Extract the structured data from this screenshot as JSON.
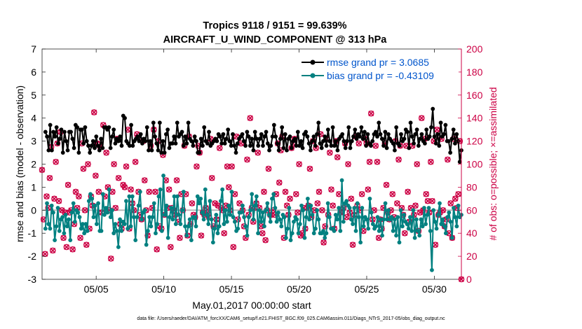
{
  "chart_data": {
    "type": "line",
    "title_line1": "Tropics 9118 / 9151 = 99.639%",
    "title_line2": "AIRCRAFT_U_WIND_COMPONENT @ 313 hPa",
    "xlabel": "May.01,2017 00:00:00 start",
    "ylabel_left": "rmse and bias (model - observation)",
    "ylabel_right": "# of obs: o=possible; ×=assimilated",
    "footer": "data file: /Users/raeder/DAI/ATM_forcXX/CAM6_setup/f.e21.FHIST_BGC.f09_025.CAM6assim.011/Diags_NTrS_2017-05/obs_diag_output.nc",
    "xlim": [
      1,
      32
    ],
    "ylim_left": [
      -3,
      7
    ],
    "ylim_right": [
      0,
      200
    ],
    "x_ticks": [
      5,
      10,
      15,
      20,
      25,
      30
    ],
    "x_tick_labels": [
      "05/05",
      "05/10",
      "05/15",
      "05/20",
      "05/25",
      "05/30"
    ],
    "y_ticks_left": [
      "-3",
      "-2",
      "-1",
      "0",
      "1",
      "2",
      "3",
      "4",
      "5",
      "6",
      "7"
    ],
    "y_ticks_right": [
      "0",
      "20",
      "40",
      "60",
      "80",
      "100",
      "120",
      "140",
      "160",
      "180",
      "200"
    ],
    "legend": [
      {
        "name": "rmse grand pr = 3.0685",
        "color": "#000000"
      },
      {
        "name": "bias grand pr = -0.43109",
        "color": "#008080"
      }
    ],
    "legend_text_color": "#0055cc",
    "right_axis_color": "#cc0044",
    "series": [
      {
        "name": "rmse",
        "color": "#000000",
        "values": [
          3.4,
          3.2,
          2.6,
          3.7,
          2.6,
          3.4,
          3.2,
          3.6,
          2.9,
          3.1,
          3.5,
          2.5,
          3.4,
          3.0,
          2.6,
          3.4,
          3.4,
          3.1,
          2.7,
          3.7,
          3.6,
          2.5,
          3.5,
          3.5,
          2.9,
          3.6,
          3.0,
          2.8,
          2.5,
          2.8,
          3.0,
          2.7,
          3.2,
          2.8,
          2.6,
          3.1,
          2.7,
          3.6,
          3.6,
          3.5,
          3.6,
          2.7,
          3.2,
          3.5,
          2.9,
          3.1,
          3.0,
          3.2,
          2.8,
          4.1,
          4.0,
          3.0,
          2.9,
          2.8,
          3.7,
          2.8,
          3.0,
          3.1,
          3.2,
          3.0,
          3.3,
          2.9,
          3.1,
          3.0,
          3.6,
          2.6,
          3.0,
          2.6,
          3.8,
          3.2,
          2.9,
          2.6,
          3.8,
          2.5,
          3.0,
          2.5,
          3.3,
          3.5,
          2.7,
          2.9,
          2.9,
          3.2,
          2.9,
          3.8,
          3.2,
          3.3,
          3.4,
          2.8,
          3.2,
          2.9,
          3.8,
          3.1,
          3.0,
          2.8,
          3.2,
          3.0,
          2.5,
          2.5,
          3.1,
          2.8,
          3.6,
          3.0,
          2.9,
          3.4,
          2.8,
          2.9,
          3.0,
          3.1,
          3.0,
          3.3,
          3.2,
          2.9,
          3.3,
          2.9,
          3.1,
          3.5,
          3.0,
          2.8,
          3.3,
          2.8,
          2.5,
          2.9,
          3.1,
          3.2,
          3.3,
          3.0,
          2.8,
          3.4,
          3.2,
          2.8,
          3.1,
          2.6,
          3.4,
          3.1,
          2.8,
          3.1,
          3.3,
          2.8,
          3.2,
          3.4,
          2.9,
          2.6,
          2.8,
          3.2,
          3.7,
          3.2,
          2.9,
          2.6,
          3.1,
          3.6,
          2.7,
          3.3,
          2.6,
          3.1,
          3.2,
          2.7,
          3.0,
          3.1,
          2.8,
          3.4,
          2.8,
          3.0,
          2.7,
          3.3,
          3.4,
          3.2,
          2.9,
          2.6,
          3.0,
          3.2,
          2.8,
          3.3,
          3.8,
          2.9,
          2.7,
          3.0,
          3.2,
          2.8,
          3.5,
          3.0,
          2.8,
          3.6,
          2.8,
          3.0,
          2.6,
          3.1,
          3.2,
          3.3,
          3.0,
          2.7,
          3.0,
          3.6,
          2.7,
          3.0,
          3.2,
          3.5,
          3.1,
          3.3,
          3.2,
          3.6,
          3.1,
          3.4,
          2.8,
          3.3,
          2.9,
          2.8,
          3.0,
          3.3,
          3.4,
          3.2,
          3.8,
          3.3,
          3.1,
          2.8,
          3.4,
          2.7,
          3.3,
          3.1,
          3.0,
          2.9,
          2.6,
          3.6,
          2.9,
          2.8,
          3.3,
          3.0,
          3.1,
          3.5,
          3.4,
          2.7,
          3.8,
          3.2,
          2.9,
          3.3,
          3.5,
          2.8,
          3.1,
          3.3,
          3.0,
          2.9,
          3.5,
          3.1,
          3.2,
          3.6,
          4.4,
          3.2,
          2.9,
          3.3,
          2.8,
          3.8,
          3.2,
          3.3,
          3.7,
          3.0,
          3.0,
          2.5,
          3.1,
          3.5,
          2.9,
          3.3,
          3.0,
          2.1,
          2.6
        ]
      },
      {
        "name": "bias",
        "color": "#008080",
        "values": [
          -0.8,
          0.3,
          -0.6,
          -0.8,
          0.2,
          -0.1,
          -1.3,
          -0.7,
          0.1,
          -0.9,
          -0.4,
          -0.3,
          -1.0,
          -0.2,
          -0.7,
          -0.4,
          -1.3,
          -0.1,
          0.3,
          -0.5,
          0.0,
          -0.1,
          -0.3,
          -0.8,
          -0.6,
          -1.0,
          -0.6,
          -0.9,
          0.4,
          0.7,
          0.5,
          -0.3,
          0.2,
          -0.6,
          0.3,
          -0.9,
          -0.9,
          0.7,
          -0.2,
          0.1,
          -0.1,
          0.9,
          -0.3,
          0.0,
          -1.0,
          -0.6,
          -0.9,
          -1.6,
          -0.4,
          -0.9,
          -0.5,
          -0.6,
          0.4,
          -0.8,
          0.6,
          -0.7,
          0.6,
          -0.3,
          -1.3,
          -0.3,
          0.2,
          0.8,
          -0.4,
          -0.1,
          0.0,
          -1.5,
          -0.9,
          -0.3,
          -0.7,
          -0.3,
          0.3,
          -1.0,
          -0.6,
          0.6,
          0.9,
          -0.9,
          1.5,
          -0.2,
          0.2,
          -1.2,
          -0.3,
          0.1,
          -0.4,
          0.6,
          -0.6,
          0.6,
          -0.2,
          -0.6,
          0.0,
          0.8,
          -0.7,
          -1.1,
          -0.7,
          -0.4,
          -1.3,
          -0.3,
          -0.3,
          -0.7,
          0.6,
          0.3,
          0.5,
          -0.1,
          -0.4,
          0.9,
          -0.2,
          -0.6,
          0.4,
          -0.4,
          -1.4,
          -0.8,
          -0.2,
          -1.0,
          -0.7,
          0.4,
          0.9,
          -0.6,
          0.0,
          -0.5,
          0.2,
          -0.2,
          0.8,
          -0.3,
          -0.5,
          -0.9,
          -0.8,
          -0.1,
          -0.1,
          0.2,
          -0.3,
          -0.7,
          -1.1,
          -0.3,
          0.0,
          0.7,
          -0.4,
          0.2,
          0.6,
          -1.0,
          0.0,
          -0.5,
          -0.1,
          -0.7,
          0.0,
          0.3,
          -0.2,
          -0.5,
          0.5,
          0.7,
          0.1,
          -0.5,
          -0.1,
          -0.4,
          -0.7,
          -0.2,
          -0.3,
          -1.2,
          -0.8,
          0.1,
          -1.3,
          -1.0,
          -0.5,
          -0.3,
          -0.4,
          -1.0,
          -0.6,
          0.2,
          0.0,
          -1.2,
          -0.3,
          0.5,
          -0.4,
          0.2,
          -0.2,
          -1.0,
          -0.8,
          0.0,
          -0.4,
          -1.0,
          -1.0,
          -0.9,
          -1.2,
          -1.0,
          0.3,
          -0.3,
          -0.8,
          -0.8,
          -0.9,
          -0.2,
          -0.4,
          0.1,
          -0.9,
          1.3,
          -0.5,
          0.3,
          0.4,
          0.2,
          0.1,
          -0.4,
          -0.6,
          0.1,
          -0.9,
          0.3,
          -0.3,
          -1.4,
          0.1,
          -0.7,
          -0.3,
          -0.4,
          -0.8,
          0.5,
          -0.1,
          -0.6,
          -0.8,
          -0.7,
          -0.3,
          -0.9,
          -0.4,
          -1.1,
          -0.4,
          0.3,
          -0.4,
          0.0,
          -0.4,
          -0.3,
          -0.9,
          -0.4,
          -1.1,
          -0.3,
          -1.4,
          0.0,
          -0.7,
          -0.2,
          -0.5,
          -0.6,
          -0.8,
          -0.3,
          -0.9,
          0.0,
          -1.2,
          -0.4,
          -0.9,
          -1.1,
          -0.4,
          -0.7,
          0.1,
          -0.6,
          -0.2,
          0.1,
          -0.9,
          -2.6,
          0.0,
          -0.5,
          -0.8,
          -0.2,
          0.3,
          -0.6,
          -0.4,
          -0.7,
          -1.0,
          -0.3,
          -0.1,
          -0.5,
          -1.2,
          0.1,
          -0.3,
          -0.7,
          0.2,
          -0.3,
          -0.2
        ]
      },
      {
        "name": "# obs possible (o)",
        "color": "#cc0044",
        "values": [
          95,
          52,
          22,
          72,
          62,
          88,
          115,
          25,
          70,
          102,
          118,
          68,
          128,
          60,
          36,
          58,
          28,
          82,
          58,
          60,
          26,
          48,
          76,
          62,
          72,
          36,
          118,
          96,
          60,
          30,
          100,
          44,
          72,
          64,
          145,
          90,
          118,
          76,
          115,
          58,
          134,
          72,
          110,
          80,
          60,
          18,
          76,
          100,
          62,
          122,
          88,
          48,
          44,
          82,
          80,
          98,
          130,
          44,
          78,
          66,
          60,
          102,
          126,
          76,
          56,
          52,
          120,
          86,
          60,
          38,
          76,
          116,
          62,
          130,
          76,
          26,
          120,
          46,
          44,
          108,
          56,
          86,
          62,
          78,
          28,
          62,
          60,
          56,
          86,
          50,
          36,
          74,
          60,
          116,
          74,
          38,
          124,
          48,
          66,
          56,
          54,
          98,
          116,
          110,
          38,
          58,
          56,
          62,
          58,
          54,
          122,
          88,
          46,
          66,
          52,
          64,
          114,
          62,
          60,
          40,
          64,
          98,
          80,
          60,
          98,
          28,
          74,
          124,
          52,
          66,
          118,
          60,
          46,
          36,
          104,
          56,
          140,
          62,
          50,
          62,
          66,
          110,
          62,
          46,
          40,
          76,
          34,
          60,
          96,
          56,
          56,
          60,
          56,
          74,
          118,
          84,
          112,
          124,
          36,
          76,
          64,
          56,
          70,
          114,
          118,
          122,
          74,
          58,
          100,
          38,
          40,
          62,
          44,
          62,
          64,
          96,
          54,
          120,
          60,
          114,
          66,
          76,
          126,
          60,
          32,
          46,
          122,
          56,
          110,
          78,
          64,
          44,
          120,
          106,
          74,
          58,
          60,
          62,
          118,
          54,
          100,
          58,
          70,
          30,
          56,
          124,
          64,
          118,
          60,
          74,
          42,
          122,
          118,
          78,
          102,
          144,
          52,
          60,
          116,
          102,
          36,
          52,
          44,
          62,
          118,
          82,
          58,
          52,
          60,
          74,
          54,
          120,
          66,
          104,
          116,
          62,
          56,
          40,
          116,
          76,
          50,
          62,
          116,
          56,
          64,
          100,
          42,
          58,
          140,
          60,
          122,
          74,
          68,
          58,
          102,
          68,
          120,
          30,
          130,
          56,
          58,
          122,
          60,
          46,
          52,
          104,
          40,
          66,
          36,
          122,
          70,
          62,
          74,
          120,
          0
        ]
      }
    ]
  }
}
